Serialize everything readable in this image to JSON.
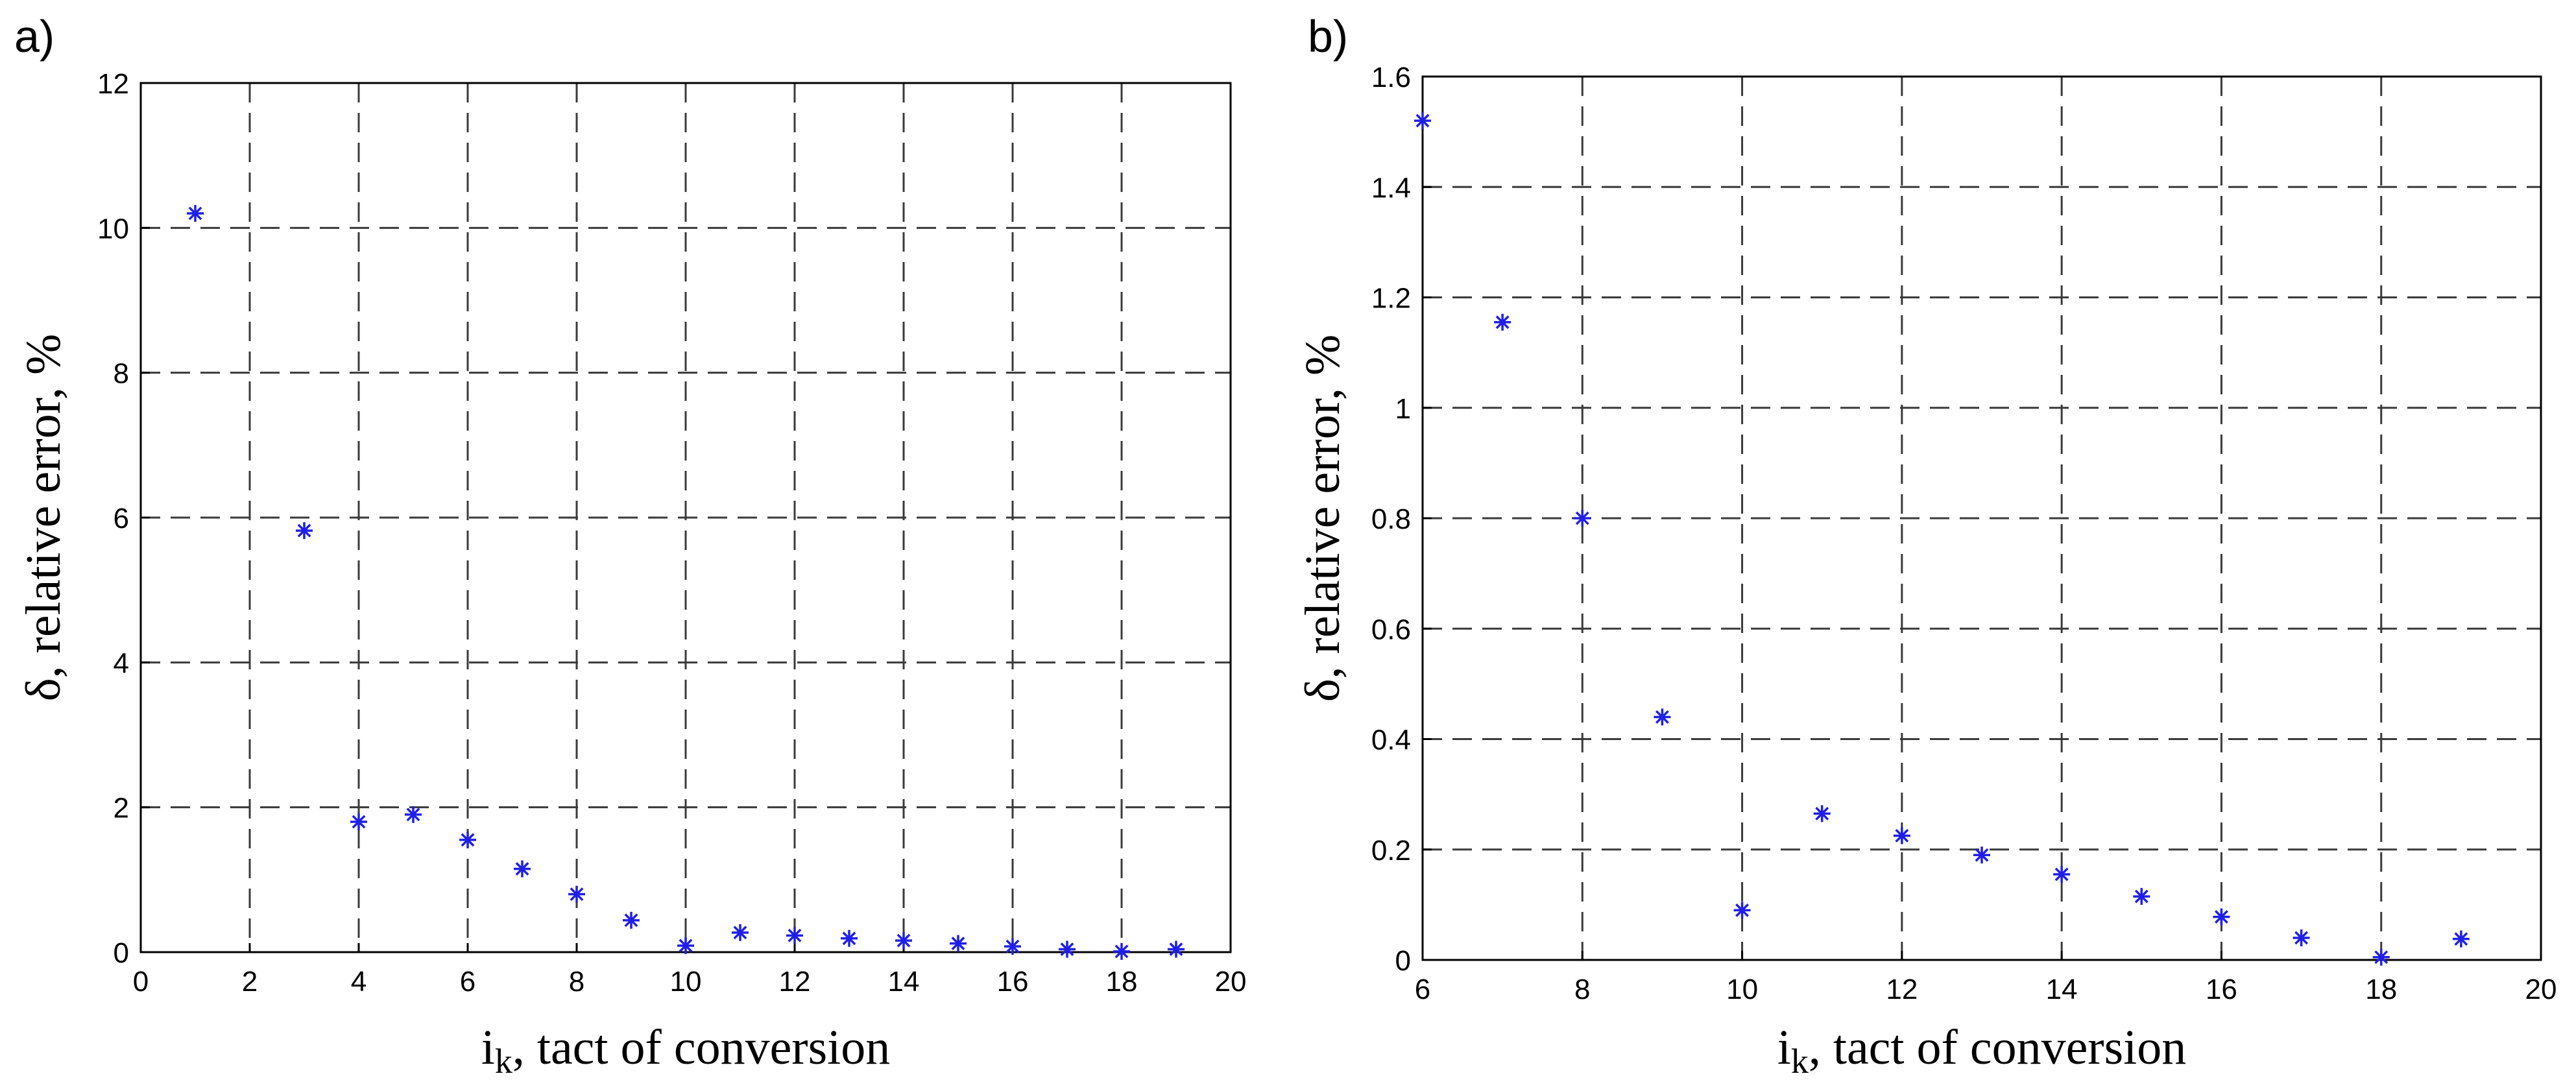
{
  "chart_data": [
    {
      "type": "scatter",
      "panel_label": "a)",
      "xlabel_main": "i",
      "xlabel_sub": "k",
      "xlabel_rest": ", tact of conversion",
      "ylabel": "δ, relative error, %",
      "xlim": [
        0,
        20
      ],
      "ylim": [
        0,
        12
      ],
      "xticks": [
        0,
        2,
        4,
        6,
        8,
        10,
        12,
        14,
        16,
        18,
        20
      ],
      "yticks": [
        0,
        2,
        4,
        6,
        8,
        10,
        12
      ],
      "grid": true,
      "marker": "asterisk",
      "marker_color": "#1f1fe6",
      "series": [
        {
          "name": "relative error",
          "x": [
            1,
            3,
            4,
            5,
            6,
            7,
            8,
            9,
            10,
            11,
            12,
            13,
            14,
            15,
            16,
            17,
            18,
            19
          ],
          "y": [
            10.2,
            5.82,
            1.8,
            1.9,
            1.55,
            1.15,
            0.8,
            0.44,
            0.09,
            0.27,
            0.23,
            0.19,
            0.16,
            0.12,
            0.08,
            0.04,
            0.01,
            0.04
          ]
        }
      ]
    },
    {
      "type": "scatter",
      "panel_label": "b)",
      "xlabel_main": "i",
      "xlabel_sub": "k",
      "xlabel_rest": ", tact of conversion",
      "ylabel": "δ, relative error, %",
      "xlim": [
        6,
        20
      ],
      "ylim": [
        0,
        1.6
      ],
      "xticks": [
        6,
        8,
        10,
        12,
        14,
        16,
        18,
        20
      ],
      "yticks": [
        0,
        0.2,
        0.4,
        0.6,
        0.8,
        1,
        1.2,
        1.4,
        1.6
      ],
      "grid": true,
      "marker": "asterisk",
      "marker_color": "#1f1fe6",
      "series": [
        {
          "name": "relative error",
          "x": [
            6,
            7,
            8,
            9,
            10,
            11,
            12,
            13,
            14,
            15,
            16,
            17,
            18,
            19
          ],
          "y": [
            1.52,
            1.155,
            0.8,
            0.44,
            0.09,
            0.265,
            0.225,
            0.19,
            0.155,
            0.115,
            0.078,
            0.04,
            0.005,
            0.038
          ]
        }
      ]
    }
  ]
}
